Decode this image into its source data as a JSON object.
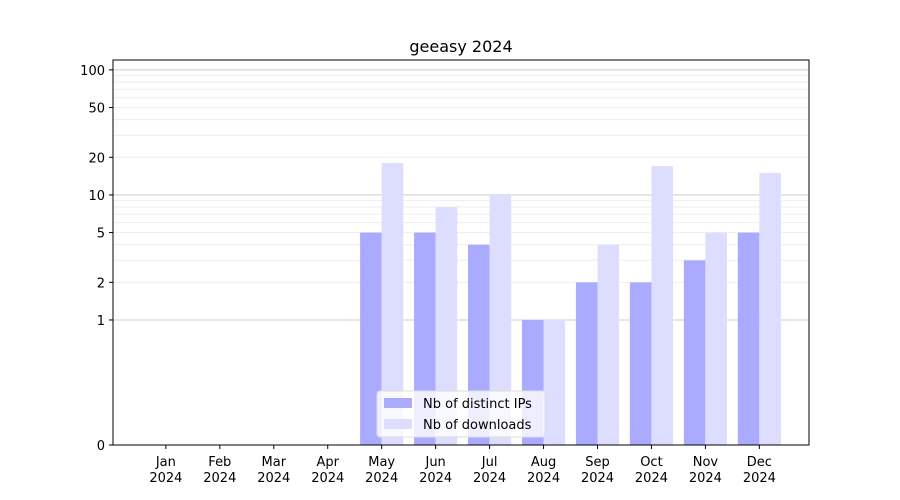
{
  "chart_data": {
    "type": "bar",
    "title": "geeasy 2024",
    "xlabel": "",
    "ylabel": "",
    "y_scale": "symlog",
    "ylim": [
      0,
      120
    ],
    "y_ticks": [
      0,
      1,
      2,
      5,
      10,
      20,
      50,
      100
    ],
    "grid": true,
    "legend_position": "lower center",
    "categories": [
      [
        "Jan",
        "2024"
      ],
      [
        "Feb",
        "2024"
      ],
      [
        "Mar",
        "2024"
      ],
      [
        "Apr",
        "2024"
      ],
      [
        "May",
        "2024"
      ],
      [
        "Jun",
        "2024"
      ],
      [
        "Jul",
        "2024"
      ],
      [
        "Aug",
        "2024"
      ],
      [
        "Sep",
        "2024"
      ],
      [
        "Oct",
        "2024"
      ],
      [
        "Nov",
        "2024"
      ],
      [
        "Dec",
        "2024"
      ]
    ],
    "series": [
      {
        "name": "Nb of distinct IPs",
        "color": "#aaaaff",
        "values": [
          0,
          0,
          0,
          0,
          5,
          5,
          4,
          1,
          2,
          2,
          3,
          5
        ]
      },
      {
        "name": "Nb of downloads",
        "color": "#ddddff",
        "values": [
          0,
          0,
          0,
          0,
          18,
          8,
          10,
          1,
          4,
          17,
          5,
          15
        ]
      }
    ]
  }
}
